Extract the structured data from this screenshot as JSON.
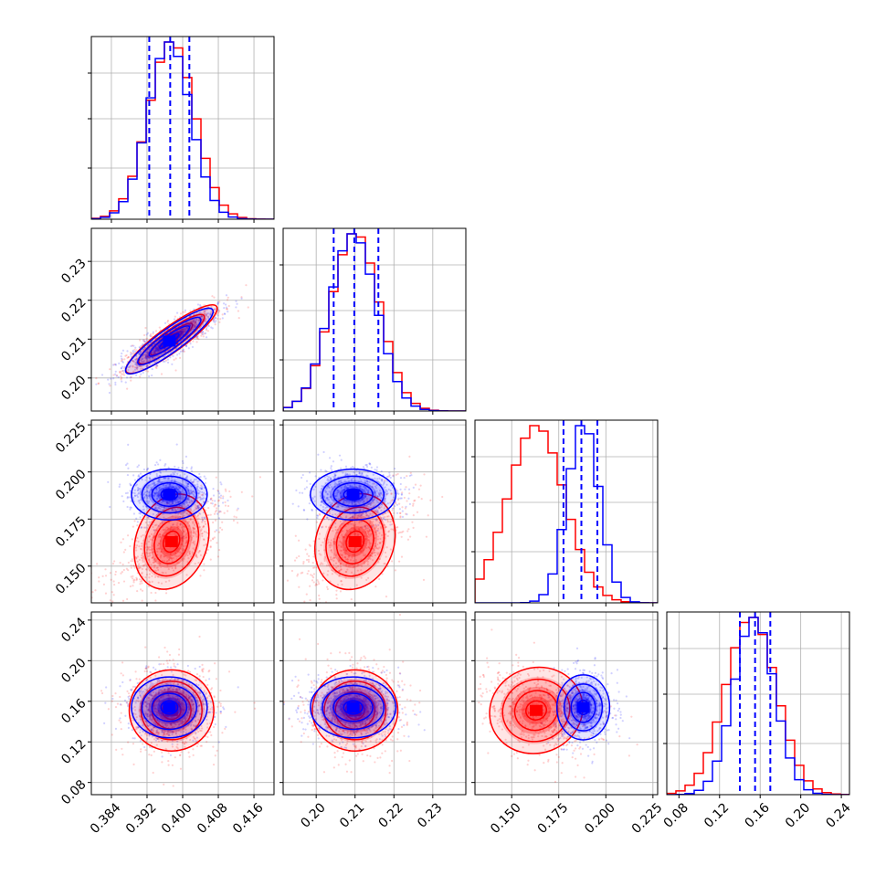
{
  "chart_data": {
    "type": "corner",
    "parameters": 4,
    "series": [
      {
        "name": "",
        "color": "#0000ff"
      },
      {
        "name": "",
        "color": "#ff0000"
      }
    ],
    "quantile_lines": {
      "color": "#0000ff",
      "values": [
        [
          0.3925,
          0.3972,
          0.4015
        ],
        [
          0.2045,
          0.2098,
          0.216
        ],
        [
          0.1775,
          0.187,
          0.1955
        ],
        [
          0.14,
          0.155,
          0.17
        ]
      ]
    },
    "axes": [
      {
        "lim": [
          0.3795,
          0.4205
        ],
        "ticks": [
          0.384,
          0.392,
          0.4,
          0.408,
          0.416
        ],
        "tick_labels": [
          "0.384",
          "0.392",
          "0.400",
          "0.408",
          "0.416"
        ]
      },
      {
        "lim": [
          0.1915,
          0.2385
        ],
        "ticks": [
          0.2,
          0.21,
          0.22,
          0.23
        ],
        "tick_labels": [
          "0.20",
          "0.21",
          "0.22",
          "0.23"
        ]
      },
      {
        "lim": [
          0.1305,
          0.2275
        ],
        "ticks": [
          0.15,
          0.175,
          0.2,
          0.225
        ],
        "tick_labels": [
          "0.150",
          "0.175",
          "0.200",
          "0.225"
        ]
      },
      {
        "lim": [
          0.068,
          0.248
        ],
        "ticks": [
          0.08,
          0.12,
          0.16,
          0.2,
          0.24
        ],
        "tick_labels": [
          "0.08",
          "0.12",
          "0.16",
          "0.20",
          "0.24"
        ]
      }
    ],
    "means": {
      "blue": [
        0.397,
        0.2095,
        0.188,
        0.154
      ],
      "red": [
        0.3975,
        0.21,
        0.163,
        0.151
      ]
    },
    "stds": {
      "blue": [
        0.0048,
        0.006,
        0.0085,
        0.02
      ],
      "red": [
        0.0052,
        0.0062,
        0.015,
        0.025
      ]
    },
    "contour_ellipses": [
      {
        "pair": [
          1,
          0
        ],
        "blue": {
          "mu": [
            0.397,
            0.2095
          ],
          "angle": 36,
          "a": 0.012,
          "b": 0.003
        },
        "red": {
          "mu": [
            0.3975,
            0.21
          ],
          "angle": 36,
          "a": 0.0125,
          "b": 0.0032
        }
      },
      {
        "pair": [
          2,
          0
        ],
        "blue": {
          "mu": [
            0.397,
            0.188
          ],
          "angle": 0,
          "a": 0.0085,
          "b": 0.0135
        },
        "red": {
          "mu": [
            0.3975,
            0.163
          ],
          "angle": -20,
          "a": 0.008,
          "b": 0.026
        }
      },
      {
        "pair": [
          2,
          1
        ],
        "blue": {
          "mu": [
            0.2095,
            0.188
          ],
          "angle": 0,
          "a": 0.011,
          "b": 0.0135
        },
        "red": {
          "mu": [
            0.21,
            0.163
          ],
          "angle": -20,
          "a": 0.01,
          "b": 0.026
        }
      },
      {
        "pair": [
          3,
          0
        ],
        "blue": {
          "mu": [
            0.397,
            0.154
          ],
          "angle": 0,
          "a": 0.0085,
          "b": 0.03
        },
        "red": {
          "mu": [
            0.3975,
            0.151
          ],
          "angle": 0,
          "a": 0.0095,
          "b": 0.04
        }
      },
      {
        "pair": [
          3,
          1
        ],
        "blue": {
          "mu": [
            0.2095,
            0.154
          ],
          "angle": 0,
          "a": 0.011,
          "b": 0.03
        },
        "red": {
          "mu": [
            0.21,
            0.151
          ],
          "angle": 0,
          "a": 0.011,
          "b": 0.04
        }
      },
      {
        "pair": [
          3,
          2
        ],
        "blue": {
          "mu": [
            0.188,
            0.154
          ],
          "angle": 0,
          "a": 0.014,
          "b": 0.032
        },
        "red": {
          "mu": [
            0.163,
            0.151
          ],
          "angle": 20,
          "a": 0.025,
          "b": 0.042
        }
      }
    ],
    "grid": true,
    "title": "",
    "xlabel": "",
    "ylabel": ""
  }
}
